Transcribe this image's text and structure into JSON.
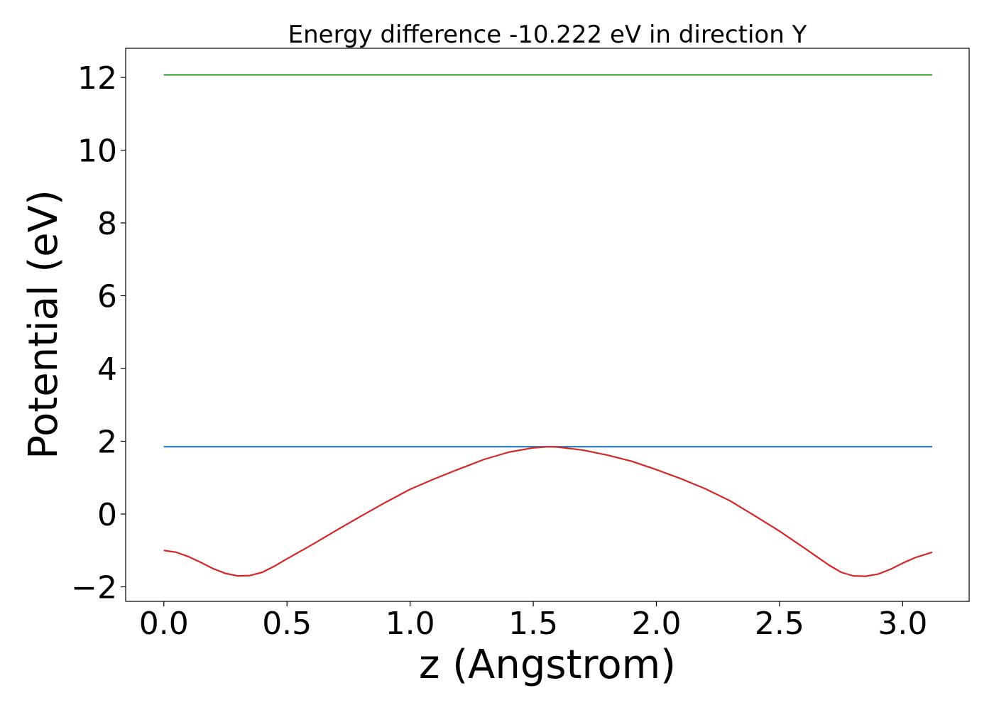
{
  "chart_data": {
    "type": "line",
    "title": "Energy difference -10.222 eV in direction Y",
    "xlabel": "z (Angstrom)",
    "ylabel": "Potential (eV)",
    "xlim": [
      -0.155,
      3.27
    ],
    "ylim": [
      -2.4,
      12.8
    ],
    "xticks": [
      0.0,
      0.5,
      1.0,
      1.5,
      2.0,
      2.5,
      3.0
    ],
    "xtick_labels": [
      "0.0",
      "0.5",
      "1.0",
      "1.5",
      "2.0",
      "2.5",
      "3.0"
    ],
    "yticks": [
      -2,
      0,
      2,
      4,
      6,
      8,
      10,
      12
    ],
    "ytick_labels": [
      "−2",
      "0",
      "2",
      "4",
      "6",
      "8",
      "10",
      "12"
    ],
    "grid": false,
    "legend": false,
    "series": [
      {
        "color": "#2ca02c",
        "x": [
          0.0,
          3.12
        ],
        "y": [
          12.07,
          12.07
        ]
      },
      {
        "color": "#1f77b4",
        "x": [
          0.0,
          3.12
        ],
        "y": [
          1.85,
          1.85
        ]
      },
      {
        "color": "#d62728",
        "x": [
          0.0,
          0.05,
          0.1,
          0.15,
          0.2,
          0.25,
          0.3,
          0.35,
          0.4,
          0.45,
          0.5,
          0.6,
          0.7,
          0.8,
          0.9,
          1.0,
          1.1,
          1.2,
          1.3,
          1.4,
          1.5,
          1.56,
          1.6,
          1.7,
          1.8,
          1.9,
          2.0,
          2.1,
          2.2,
          2.3,
          2.4,
          2.5,
          2.6,
          2.7,
          2.75,
          2.8,
          2.85,
          2.9,
          2.95,
          3.0,
          3.05,
          3.12
        ],
        "y": [
          -1.0,
          -1.05,
          -1.17,
          -1.33,
          -1.5,
          -1.63,
          -1.7,
          -1.69,
          -1.6,
          -1.43,
          -1.23,
          -0.85,
          -0.45,
          -0.06,
          0.32,
          0.68,
          0.97,
          1.24,
          1.5,
          1.7,
          1.82,
          1.85,
          1.84,
          1.76,
          1.62,
          1.45,
          1.22,
          0.97,
          0.69,
          0.36,
          -0.05,
          -0.47,
          -0.93,
          -1.4,
          -1.6,
          -1.7,
          -1.71,
          -1.65,
          -1.52,
          -1.35,
          -1.2,
          -1.05
        ]
      }
    ]
  }
}
